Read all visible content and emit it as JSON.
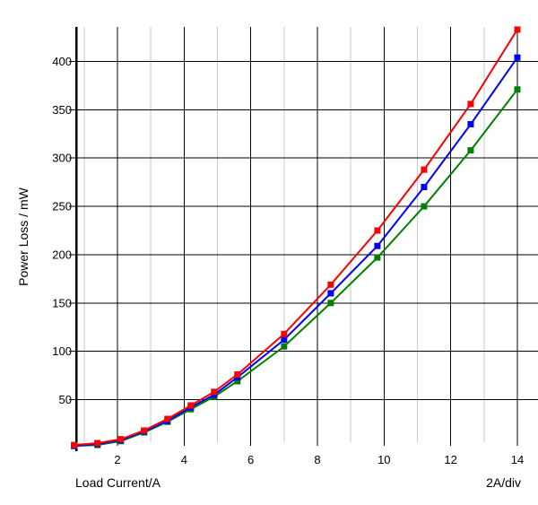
{
  "chart_data": {
    "type": "line",
    "title": "",
    "xlabel": "Load Current/A",
    "ylabel": "Power Loss / mW",
    "x_div_label": "2A/div",
    "x_ticks": [
      2,
      4,
      6,
      8,
      10,
      12,
      14
    ],
    "x_minor_ticks": [
      1,
      3,
      5,
      7,
      9,
      11,
      13
    ],
    "y_ticks": [
      50,
      100,
      150,
      200,
      250,
      300,
      350,
      400
    ],
    "x_range": [
      0.76,
      14.0
    ],
    "y_range": [
      6,
      436
    ],
    "grid": {
      "major": "on",
      "minor_vertical": "on",
      "legend_position": "none"
    },
    "x": [
      0.7,
      1.4,
      2.1,
      2.8,
      3.5,
      4.2,
      4.9,
      5.6,
      7.0,
      8.4,
      9.8,
      11.2,
      12.6,
      14.0
    ],
    "series": [
      {
        "name": "red",
        "color": "#ff0000",
        "values": [
          3,
          5,
          9,
          18,
          30,
          44,
          58,
          76,
          118,
          169,
          225,
          288,
          356,
          433
        ]
      },
      {
        "name": "blue",
        "color": "#0000ff",
        "values": [
          2,
          4,
          8,
          17,
          28,
          42,
          55,
          73,
          112,
          160,
          209,
          270,
          335,
          404
        ]
      },
      {
        "name": "green",
        "color": "#008000",
        "values": [
          2,
          3,
          7,
          16,
          27,
          40,
          53,
          69,
          105,
          150,
          197,
          250,
          308,
          371
        ]
      }
    ],
    "colors": {
      "background": "#ffffff",
      "major_grid": "#000000",
      "minor_grid": "#c8c8c8",
      "axis": "#000000",
      "text": "#000000"
    }
  }
}
